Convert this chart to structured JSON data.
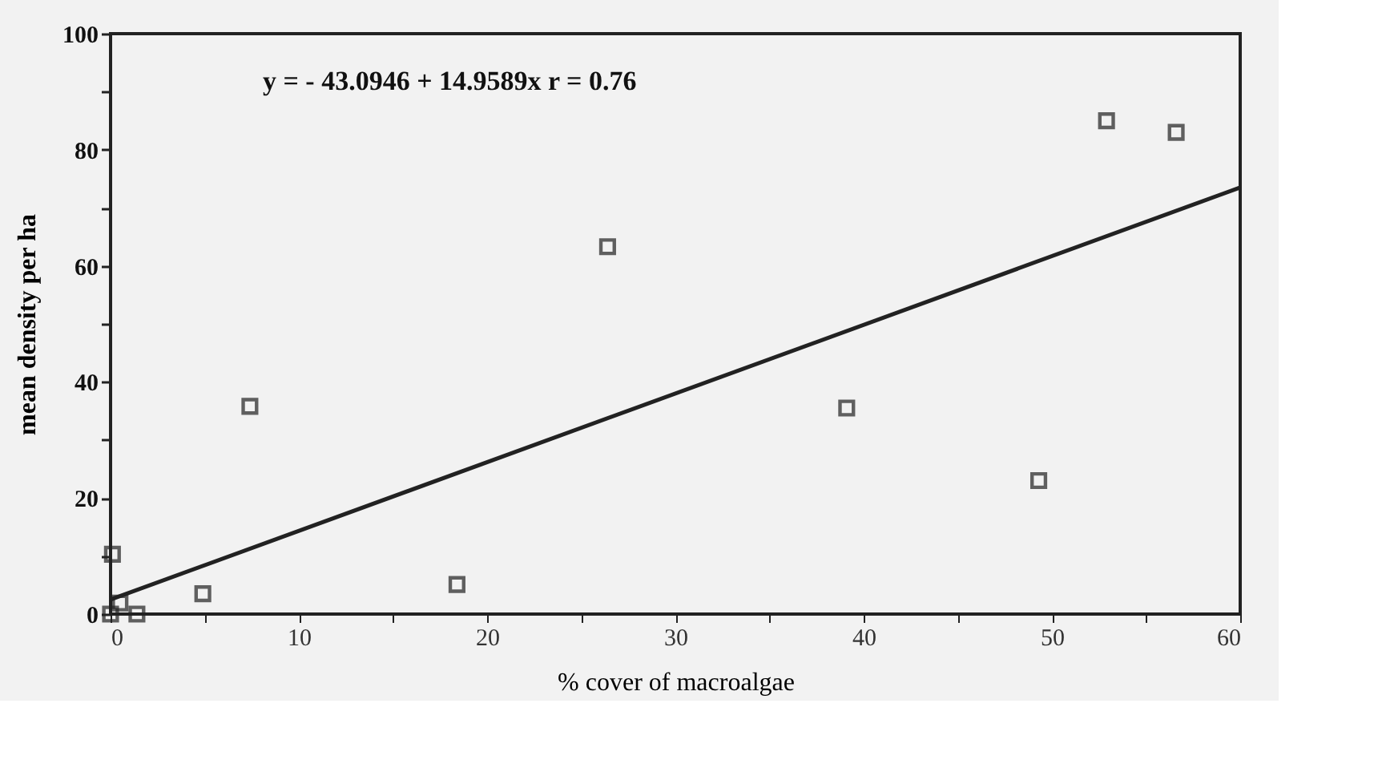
{
  "chart_data": {
    "type": "scatter",
    "xlabel": "% cover of macroalgae",
    "ylabel": "mean density per ha",
    "annotations": [
      "y =  - 43.0946 + 14.9589x   r = 0.76"
    ],
    "series": [
      {
        "marker": "square",
        "color": "#222222",
        "x": [
          0,
          0.1,
          0.5,
          1.4,
          4.9,
          7.4,
          18.4,
          26.4,
          39.1,
          49.3,
          52.9,
          56.6
        ],
        "values": [
          0,
          10.3,
          1.9,
          0,
          3.5,
          35.8,
          5.1,
          63.3,
          35.5,
          23,
          85,
          83
        ]
      },
      {
        "type": "line",
        "color": "#222222",
        "x": [
          0,
          60
        ],
        "values": [
          2.5,
          73.5
        ]
      }
    ],
    "grid": false,
    "xlim": [
      0,
      60
    ],
    "xticks": [
      0,
      {
        "value": 5,
        "label": null
      },
      10,
      {
        "value": 15,
        "label": null
      },
      20,
      {
        "value": 25,
        "label": null
      },
      30,
      {
        "value": 35,
        "label": null
      },
      40,
      {
        "value": 45,
        "label": null
      },
      50,
      {
        "value": 55,
        "label": null
      },
      60
    ],
    "ylim": [
      0,
      100
    ],
    "yticks": [
      0,
      {
        "value": 10,
        "label": null
      },
      20,
      {
        "value": 30,
        "label": null
      },
      40,
      {
        "value": 50,
        "label": null
      },
      60,
      {
        "value": 70,
        "label": null
      },
      80,
      {
        "value": 90,
        "label": null
      },
      100
    ]
  }
}
